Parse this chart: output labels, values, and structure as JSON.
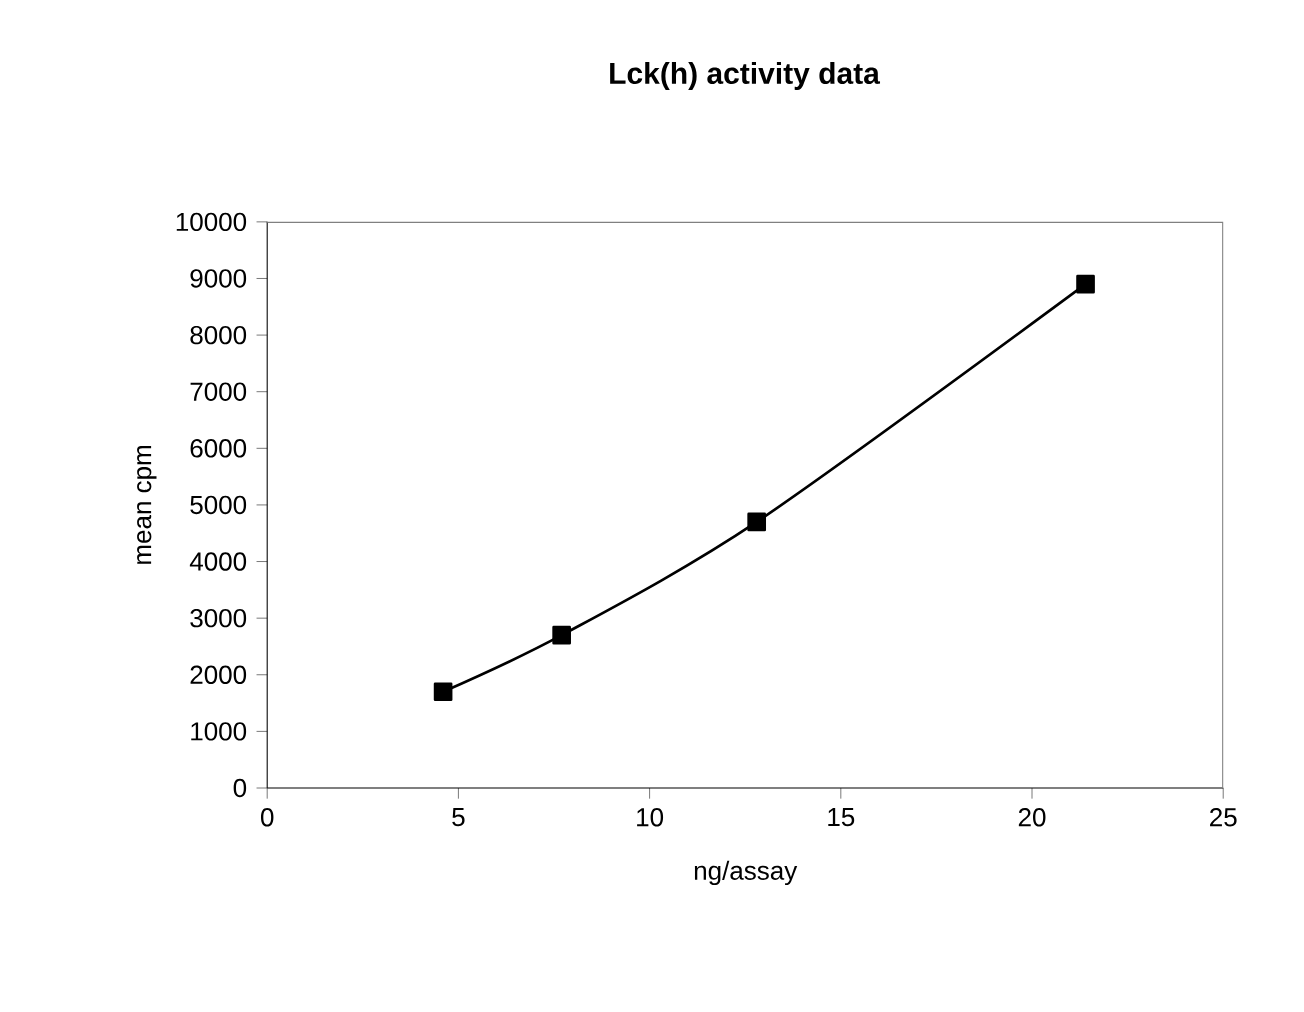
{
  "chart_data": {
    "type": "line",
    "title": "Lck(h) activity data",
    "xlabel": "ng/assay",
    "ylabel": "mean cpm",
    "x": [
      4.6,
      7.7,
      12.8,
      21.4
    ],
    "series": [
      {
        "color": "#000000",
        "values": [
          1700,
          2700,
          4700,
          8900
        ]
      }
    ],
    "xlim": [
      0,
      25
    ],
    "xticks": [
      0,
      5,
      10,
      15,
      20,
      25
    ],
    "ylim": [
      0,
      10000
    ],
    "yticks": [
      0,
      1000,
      2000,
      3000,
      4000,
      5000,
      6000,
      7000,
      8000,
      9000,
      10000
    ],
    "grid": false,
    "marker": "square",
    "line_style": "solid"
  }
}
